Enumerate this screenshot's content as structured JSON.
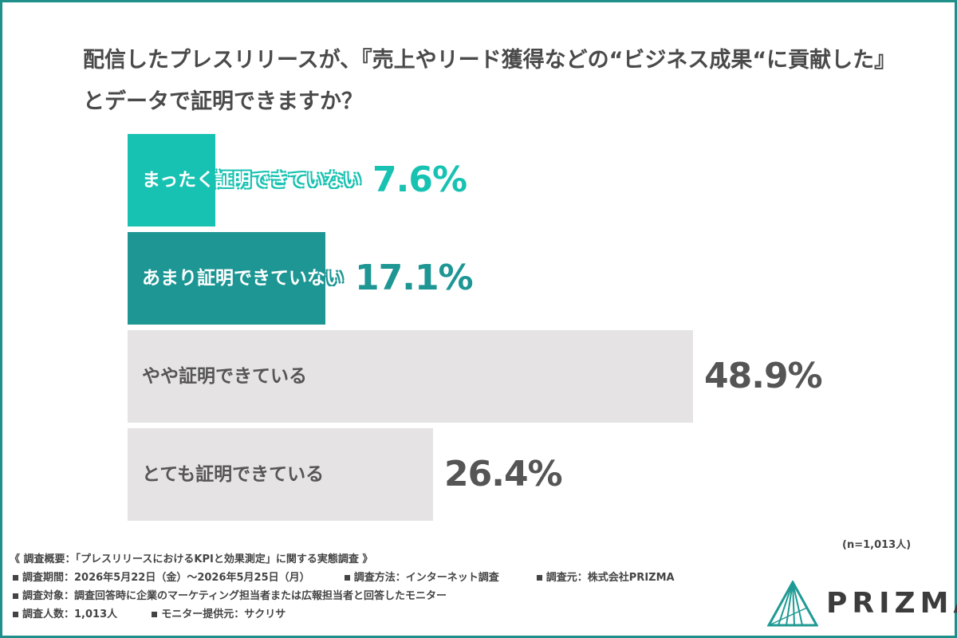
{
  "title": "配信したプレスリリースが、『売上やリード獲得などの“ビジネス成果“に貢献した』とデータで証明できますか？",
  "chart_data": {
    "type": "bar",
    "orientation": "horizontal",
    "title": "配信したプレスリリースが、『売上やリード獲得などの“ビジネス成果“に貢献した』とデータで証明できますか？",
    "categories": [
      "まったく証明できていない",
      "あまり証明できていない",
      "やや証明できている",
      "とても証明できている"
    ],
    "values": [
      7.6,
      17.1,
      48.9,
      26.4
    ],
    "value_labels": [
      "7.6%",
      "17.1%",
      "48.9%",
      "26.4%"
    ],
    "unit": "%",
    "xlim": [
      0,
      100
    ],
    "colors": [
      "#18c2b2",
      "#1d9694",
      "#e5e3e4",
      "#e5e3e4"
    ],
    "value_colors": [
      "#18c2b2",
      "#1d9694",
      "#555555",
      "#555555"
    ],
    "label_colors": [
      "#ffffff",
      "#ffffff",
      "#555555",
      "#555555"
    ],
    "grid": false,
    "legend": "none"
  },
  "sample_note": "(n=1,013人)",
  "footer": {
    "heading": "《 調査概要：「プレスリリースにおけるKPIと効果測定」に関する実態調査 》",
    "period": "調査期間：2026年5月22日（金）～2026年5月25日（月）",
    "method": "調査方法：インターネット調査",
    "organizer": "調査元：株式会社PRIZMA",
    "target": "調査対象：調査回答時に企業のマーケティング担当者または広報担当者と回答したモニター",
    "count": "調査人数：1,013人",
    "provider": "モニター提供元：サクリサ"
  },
  "logo": {
    "text": "PRIZMA",
    "icon": "prism-logo-icon",
    "color": "#1f9a94"
  }
}
